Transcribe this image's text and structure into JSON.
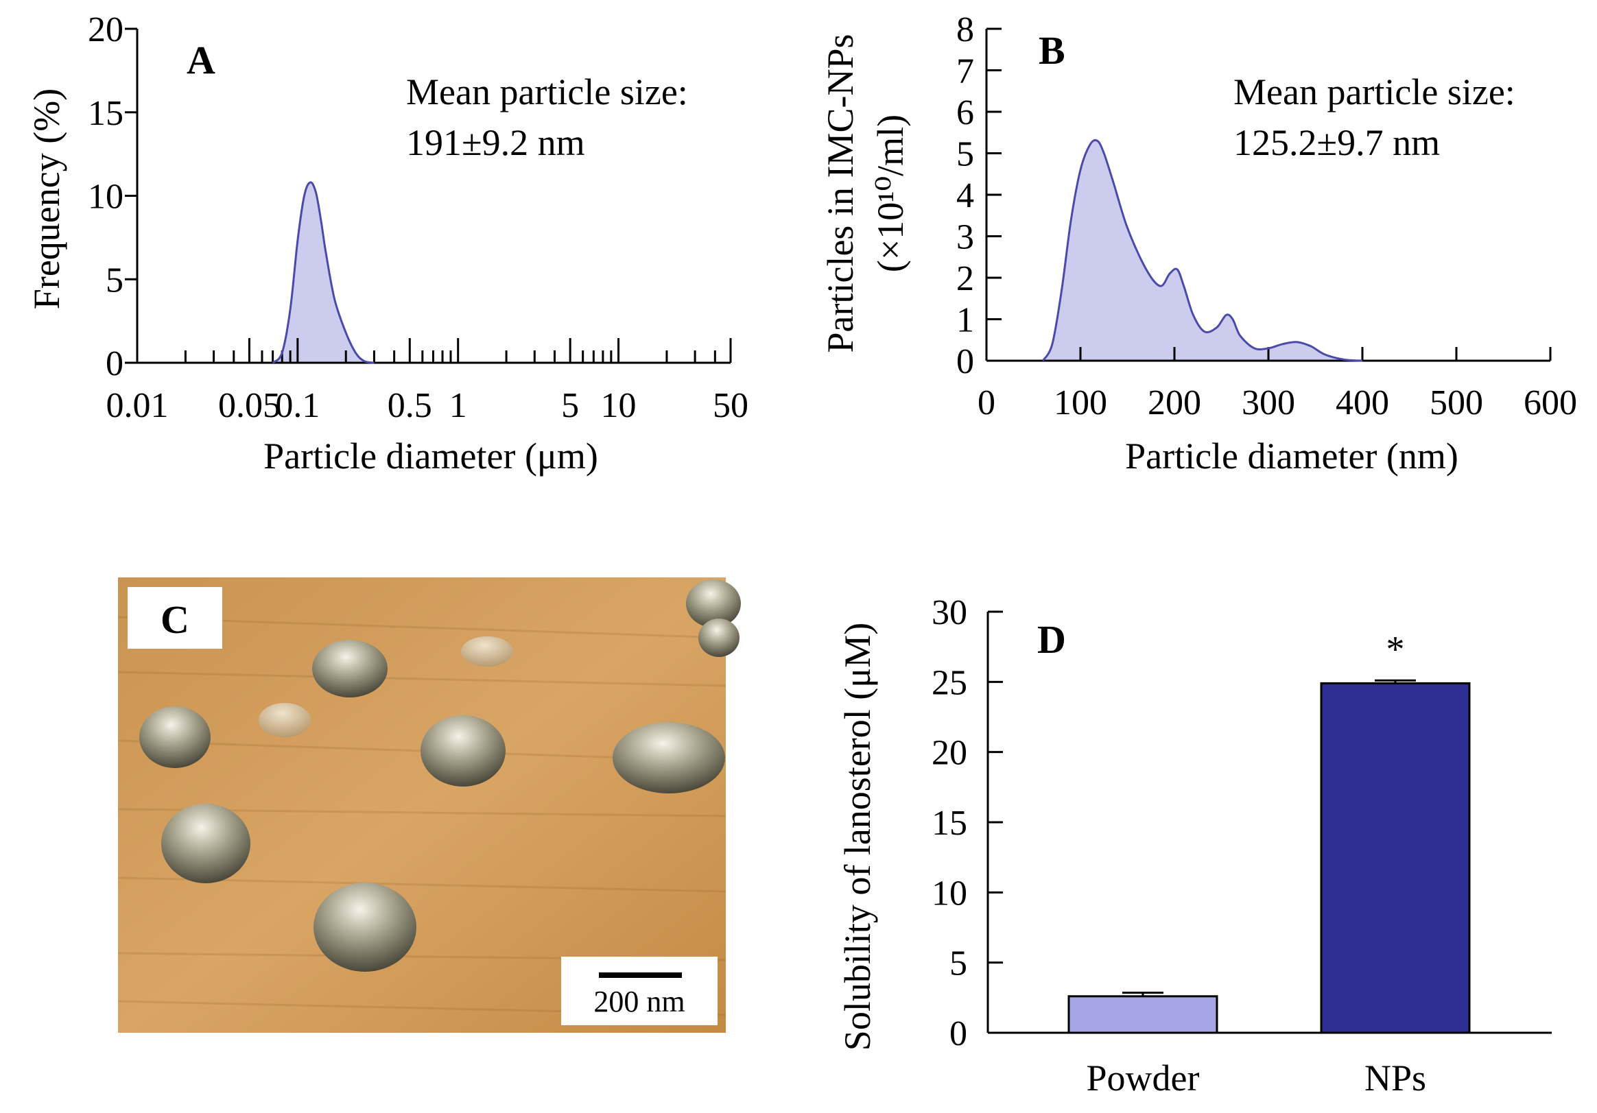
{
  "figure": {
    "panel_c": {
      "label": "C",
      "image": "AFM 3D topography of nanoparticles",
      "scale_bar": "200 nm"
    }
  },
  "colors": {
    "kde_fill": "#ccccee",
    "kde_line": "#4a4aaa",
    "powder_bar": "#a6a6e6",
    "nps_bar": "#2e2e92"
  },
  "chart_data": [
    {
      "id": "A",
      "type": "area",
      "panel_label": "A",
      "xlabel": "Particle diameter (μm)",
      "ylabel": "Frequency (%)",
      "x_scale": "log",
      "xlim": [
        0.01,
        50
      ],
      "ylim": [
        0,
        20
      ],
      "xticks": [
        0.01,
        0.05,
        0.1,
        0.5,
        1,
        5,
        10,
        50
      ],
      "xtick_labels": [
        "0.01",
        "0.05",
        "0.1",
        "0.5",
        "1",
        "5",
        "10",
        "50"
      ],
      "yticks": [
        0,
        5,
        10,
        15,
        20
      ],
      "ytick_labels": [
        "0",
        "5",
        "10",
        "15",
        "20"
      ],
      "annotation": [
        "Mean particle size:",
        "191±9.2 nm"
      ],
      "series": [
        {
          "name": "frequency",
          "x": [
            0.07,
            0.08,
            0.09,
            0.1,
            0.11,
            0.12,
            0.13,
            0.14,
            0.15,
            0.17,
            0.2,
            0.23,
            0.26,
            0.3
          ],
          "y": [
            0,
            0.6,
            3.2,
            7.3,
            10.0,
            10.8,
            10.2,
            8.5,
            6.6,
            3.8,
            1.8,
            0.6,
            0.1,
            0
          ]
        }
      ]
    },
    {
      "id": "B",
      "type": "area",
      "panel_label": "B",
      "xlabel": "Particle diameter (nm)",
      "ylabel": "Particles in IMC-NPs",
      "ylabel2": "(×10¹⁰/ml)",
      "xlim": [
        0,
        600
      ],
      "ylim": [
        0,
        8
      ],
      "xticks": [
        0,
        100,
        200,
        300,
        400,
        500,
        600
      ],
      "xtick_labels": [
        "0",
        "100",
        "200",
        "300",
        "400",
        "500",
        "600"
      ],
      "yticks": [
        0,
        1,
        2,
        3,
        4,
        5,
        6,
        7,
        8
      ],
      "ytick_labels": [
        "0",
        "1",
        "2",
        "3",
        "4",
        "5",
        "6",
        "7",
        "8"
      ],
      "annotation": [
        "Mean particle size:",
        "125.2±9.7 nm"
      ],
      "series": [
        {
          "name": "particles",
          "x": [
            60,
            70,
            80,
            90,
            100,
            110,
            118,
            125,
            135,
            150,
            170,
            185,
            195,
            203,
            210,
            220,
            232,
            245,
            255,
            262,
            270,
            285,
            300,
            315,
            330,
            345,
            360,
            380,
            400
          ],
          "y": [
            0,
            0.4,
            1.7,
            3.4,
            4.6,
            5.2,
            5.3,
            5.0,
            4.3,
            3.2,
            2.2,
            1.8,
            2.1,
            2.2,
            1.8,
            1.1,
            0.7,
            0.8,
            1.1,
            1.0,
            0.6,
            0.3,
            0.3,
            0.4,
            0.45,
            0.35,
            0.15,
            0.03,
            0
          ]
        }
      ]
    },
    {
      "id": "D",
      "type": "bar",
      "panel_label": "D",
      "categories": [
        "Powder",
        "NPs"
      ],
      "values": [
        2.6,
        24.9
      ],
      "errors": [
        0.25,
        0.2
      ],
      "significance": [
        "",
        "*"
      ],
      "ylabel": "Solubility of lanosterol (μM)",
      "ylim": [
        0,
        30
      ],
      "yticks": [
        0,
        5,
        10,
        15,
        20,
        25,
        30
      ],
      "ytick_labels": [
        "0",
        "5",
        "10",
        "15",
        "20",
        "25",
        "30"
      ]
    }
  ]
}
